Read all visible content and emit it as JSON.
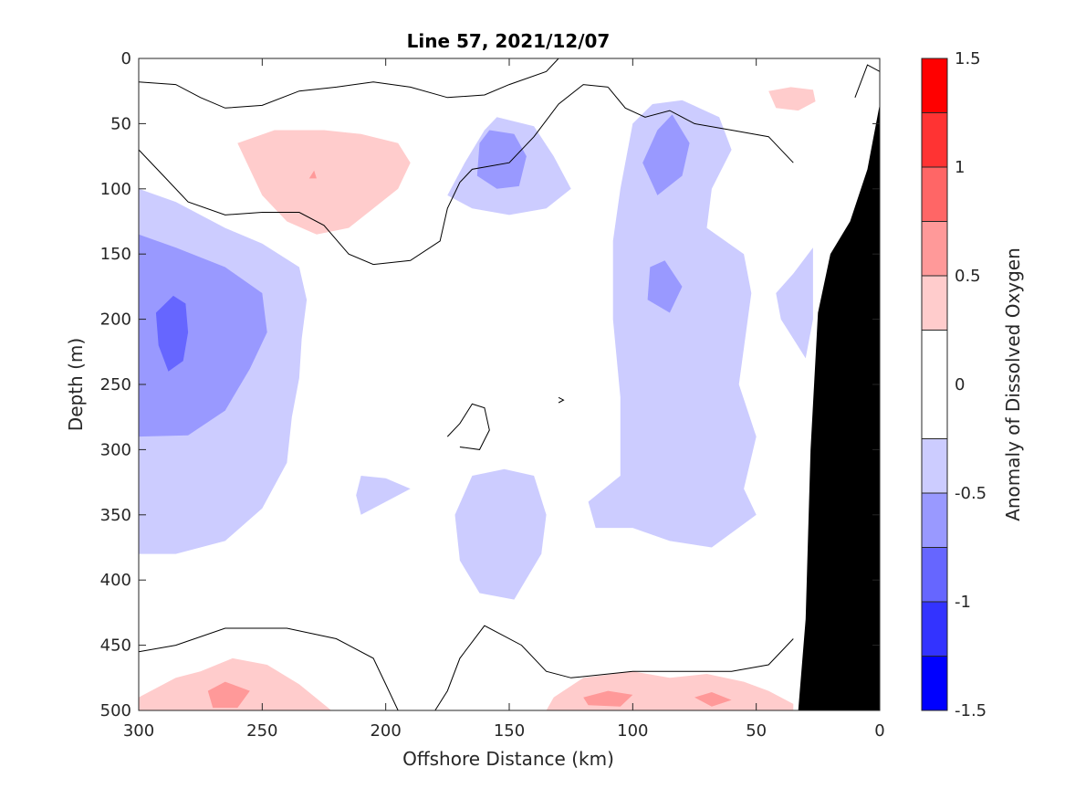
{
  "chart_data": {
    "type": "heatmap",
    "subtype": "filled-contour-section",
    "title": "Line 57, 2021/12/07",
    "xlabel": "Offshore Distance (km)",
    "ylabel": "Depth (m)",
    "xlim": [
      300,
      0
    ],
    "ylim": [
      0,
      500
    ],
    "x_reversed": true,
    "y_reversed": true,
    "x_ticks": [
      "300",
      "250",
      "200",
      "150",
      "100",
      "50",
      "0"
    ],
    "y_ticks": [
      "0",
      "50",
      "100",
      "150",
      "200",
      "250",
      "300",
      "350",
      "400",
      "450",
      "500"
    ],
    "colorbar": {
      "label": "Anomaly of Dissolved Oxygen",
      "range": [
        -1.5,
        1.5
      ],
      "ticks": [
        "1.5",
        "1",
        "0.5",
        "0",
        "-0.5",
        "-1",
        "-1.5"
      ],
      "levels": [
        {
          "from": 1.25,
          "to": 1.5,
          "color": "#ff0000"
        },
        {
          "from": 1.0,
          "to": 1.25,
          "color": "#ff3333"
        },
        {
          "from": 0.75,
          "to": 1.0,
          "color": "#ff6666"
        },
        {
          "from": 0.5,
          "to": 0.75,
          "color": "#ff9999"
        },
        {
          "from": 0.25,
          "to": 0.5,
          "color": "#ffcccc"
        },
        {
          "from": -0.25,
          "to": 0.25,
          "color": "#ffffff"
        },
        {
          "from": -0.5,
          "to": -0.25,
          "color": "#ccccff"
        },
        {
          "from": -0.75,
          "to": -0.5,
          "color": "#9999ff"
        },
        {
          "from": -1.0,
          "to": -0.75,
          "color": "#6666ff"
        },
        {
          "from": -1.25,
          "to": -1.0,
          "color": "#3333ff"
        },
        {
          "from": -1.5,
          "to": -1.25,
          "color": "#0000ff"
        }
      ]
    },
    "regions": [
      {
        "name": "upper-left positive patch",
        "level": 0.25,
        "points": [
          [
            225,
            55
          ],
          [
            210,
            58
          ],
          [
            195,
            65
          ],
          [
            190,
            80
          ],
          [
            195,
            100
          ],
          [
            205,
            115
          ],
          [
            215,
            130
          ],
          [
            228,
            135
          ],
          [
            240,
            125
          ],
          [
            250,
            105
          ],
          [
            255,
            85
          ],
          [
            260,
            65
          ],
          [
            245,
            55
          ]
        ]
      },
      {
        "name": "upper-left positive core",
        "level": 0.5,
        "points": [
          [
            229,
            86
          ],
          [
            228,
            92
          ],
          [
            231,
            92
          ]
        ]
      },
      {
        "name": "surface positive nearshore",
        "level": 0.25,
        "points": [
          [
            27,
            24
          ],
          [
            26,
            33
          ],
          [
            33,
            40
          ],
          [
            42,
            38
          ],
          [
            45,
            25
          ],
          [
            36,
            22
          ]
        ]
      },
      {
        "name": "west negative",
        "level": -0.25,
        "points": [
          [
            300,
            100
          ],
          [
            285,
            110
          ],
          [
            265,
            130
          ],
          [
            250,
            142
          ],
          [
            235,
            160
          ],
          [
            232,
            185
          ],
          [
            234,
            215
          ],
          [
            235,
            245
          ],
          [
            238,
            275
          ],
          [
            240,
            310
          ],
          [
            250,
            345
          ],
          [
            265,
            370
          ],
          [
            285,
            380
          ],
          [
            300,
            380
          ]
        ]
      },
      {
        "name": "west negative mid",
        "level": -0.5,
        "points": [
          [
            300,
            135
          ],
          [
            285,
            145
          ],
          [
            265,
            160
          ],
          [
            250,
            180
          ],
          [
            248,
            210
          ],
          [
            255,
            238
          ],
          [
            265,
            270
          ],
          [
            280,
            289
          ],
          [
            300,
            290
          ]
        ]
      },
      {
        "name": "west negative core",
        "level": -0.75,
        "points": [
          [
            286,
            182
          ],
          [
            281,
            188
          ],
          [
            280,
            210
          ],
          [
            282,
            232
          ],
          [
            288,
            240
          ],
          [
            292,
            220
          ],
          [
            293,
            195
          ]
        ]
      },
      {
        "name": "upper mid negative",
        "level": -0.25,
        "points": [
          [
            155,
            45
          ],
          [
            140,
            52
          ],
          [
            132,
            75
          ],
          [
            125,
            100
          ],
          [
            135,
            115
          ],
          [
            150,
            120
          ],
          [
            165,
            115
          ],
          [
            175,
            105
          ],
          [
            168,
            80
          ],
          [
            160,
            55
          ]
        ]
      },
      {
        "name": "upper mid negative core",
        "level": -0.5,
        "points": [
          [
            158,
            55
          ],
          [
            148,
            58
          ],
          [
            143,
            75
          ],
          [
            146,
            98
          ],
          [
            155,
            100
          ],
          [
            163,
            90
          ],
          [
            162,
            65
          ]
        ]
      },
      {
        "name": "central-east negative band",
        "level": -0.25,
        "points": [
          [
            100,
            50
          ],
          [
            92,
            35
          ],
          [
            80,
            32
          ],
          [
            65,
            45
          ],
          [
            60,
            70
          ],
          [
            68,
            100
          ],
          [
            70,
            130
          ],
          [
            55,
            150
          ],
          [
            52,
            180
          ],
          [
            57,
            250
          ],
          [
            50,
            290
          ],
          [
            55,
            330
          ],
          [
            50,
            350
          ],
          [
            68,
            375
          ],
          [
            85,
            370
          ],
          [
            100,
            360
          ],
          [
            115,
            360
          ],
          [
            118,
            340
          ],
          [
            105,
            320
          ],
          [
            105,
            260
          ],
          [
            108,
            200
          ],
          [
            108,
            140
          ],
          [
            105,
            100
          ]
        ]
      },
      {
        "name": "central-east core upper",
        "level": -0.5,
        "points": [
          [
            84,
            43
          ],
          [
            77,
            65
          ],
          [
            80,
            90
          ],
          [
            90,
            105
          ],
          [
            96,
            80
          ],
          [
            90,
            55
          ]
        ]
      },
      {
        "name": "central-east core lower",
        "level": -0.5,
        "points": [
          [
            87,
            155
          ],
          [
            80,
            175
          ],
          [
            85,
            195
          ],
          [
            94,
            185
          ],
          [
            93,
            160
          ]
        ]
      },
      {
        "name": "nearshore negative",
        "level": -0.25,
        "points": [
          [
            27,
            145
          ],
          [
            35,
            165
          ],
          [
            42,
            180
          ],
          [
            40,
            200
          ],
          [
            35,
            215
          ],
          [
            30,
            230
          ],
          [
            27,
            200
          ]
        ]
      },
      {
        "name": "deep central negative",
        "level": -0.25,
        "points": [
          [
            152,
            315
          ],
          [
            140,
            320
          ],
          [
            135,
            350
          ],
          [
            137,
            380
          ],
          [
            148,
            415
          ],
          [
            162,
            410
          ],
          [
            170,
            385
          ],
          [
            172,
            350
          ],
          [
            165,
            320
          ]
        ]
      },
      {
        "name": "small negative",
        "level": -0.25,
        "points": [
          [
            210,
            320
          ],
          [
            200,
            322
          ],
          [
            190,
            330
          ],
          [
            200,
            340
          ],
          [
            210,
            350
          ],
          [
            212,
            335
          ]
        ]
      },
      {
        "name": "bottom positive band left",
        "level": 0.25,
        "points": [
          [
            275,
            470
          ],
          [
            262,
            460
          ],
          [
            248,
            465
          ],
          [
            235,
            480
          ],
          [
            222,
            500
          ],
          [
            300,
            500
          ],
          [
            300,
            490
          ],
          [
            285,
            475
          ]
        ]
      },
      {
        "name": "bottom positive core left",
        "level": 0.5,
        "points": [
          [
            272,
            485
          ],
          [
            265,
            478
          ],
          [
            255,
            485
          ],
          [
            260,
            498
          ],
          [
            270,
            498
          ]
        ]
      },
      {
        "name": "bottom positive band right",
        "level": 0.25,
        "points": [
          [
            132,
            490
          ],
          [
            120,
            475
          ],
          [
            100,
            470
          ],
          [
            85,
            475
          ],
          [
            70,
            472
          ],
          [
            55,
            478
          ],
          [
            45,
            485
          ],
          [
            35,
            495
          ],
          [
            35,
            500
          ],
          [
            135,
            500
          ]
        ]
      },
      {
        "name": "bottom positive core right A",
        "level": 0.5,
        "points": [
          [
            120,
            490
          ],
          [
            110,
            485
          ],
          [
            100,
            488
          ],
          [
            105,
            497
          ],
          [
            118,
            496
          ]
        ]
      },
      {
        "name": "bottom positive core right B",
        "level": 0.5,
        "points": [
          [
            75,
            490
          ],
          [
            68,
            486
          ],
          [
            60,
            492
          ],
          [
            68,
            497
          ]
        ]
      }
    ],
    "zero_contours": [
      [
        [
          300,
          18
        ],
        [
          285,
          20
        ],
        [
          275,
          30
        ],
        [
          265,
          38
        ],
        [
          250,
          36
        ],
        [
          235,
          25
        ],
        [
          220,
          22
        ],
        [
          205,
          18
        ],
        [
          190,
          22
        ],
        [
          175,
          30
        ],
        [
          160,
          28
        ],
        [
          150,
          20
        ],
        [
          135,
          10
        ],
        [
          130,
          0
        ]
      ],
      [
        [
          300,
          70
        ],
        [
          290,
          90
        ],
        [
          280,
          110
        ],
        [
          265,
          120
        ],
        [
          250,
          118
        ],
        [
          235,
          118
        ],
        [
          225,
          128
        ],
        [
          215,
          150
        ],
        [
          205,
          158
        ],
        [
          190,
          155
        ],
        [
          178,
          140
        ],
        [
          175,
          115
        ],
        [
          170,
          95
        ],
        [
          165,
          85
        ],
        [
          150,
          80
        ],
        [
          140,
          60
        ],
        [
          130,
          35
        ],
        [
          120,
          20
        ],
        [
          110,
          22
        ]
      ],
      [
        [
          175,
          290
        ],
        [
          170,
          280
        ],
        [
          165,
          265
        ],
        [
          160,
          268
        ],
        [
          158,
          285
        ],
        [
          162,
          300
        ],
        [
          170,
          298
        ]
      ],
      [
        [
          300,
          455
        ],
        [
          285,
          450
        ],
        [
          265,
          437
        ],
        [
          240,
          437
        ],
        [
          220,
          445
        ],
        [
          205,
          460
        ],
        [
          200,
          480
        ],
        [
          195,
          500
        ]
      ],
      [
        [
          180,
          500
        ],
        [
          175,
          485
        ],
        [
          170,
          460
        ],
        [
          160,
          435
        ],
        [
          145,
          450
        ],
        [
          135,
          470
        ],
        [
          125,
          475
        ],
        [
          100,
          470
        ],
        [
          80,
          470
        ],
        [
          60,
          470
        ],
        [
          45,
          465
        ],
        [
          35,
          445
        ]
      ],
      [
        [
          130,
          260
        ],
        [
          128,
          262
        ],
        [
          130,
          264
        ]
      ],
      [
        [
          110,
          22
        ],
        [
          103,
          38
        ],
        [
          95,
          45
        ],
        [
          85,
          40
        ],
        [
          75,
          50
        ],
        [
          60,
          55
        ],
        [
          45,
          60
        ],
        [
          35,
          80
        ]
      ],
      [
        [
          10,
          30
        ],
        [
          5,
          5
        ],
        [
          0,
          10
        ]
      ]
    ],
    "land_mask": {
      "color": "#000000",
      "points": [
        [
          0,
          35
        ],
        [
          5,
          85
        ],
        [
          12,
          125
        ],
        [
          20,
          150
        ],
        [
          25,
          195
        ],
        [
          28,
          300
        ],
        [
          30,
          430
        ],
        [
          33,
          500
        ],
        [
          0,
          500
        ]
      ]
    }
  }
}
